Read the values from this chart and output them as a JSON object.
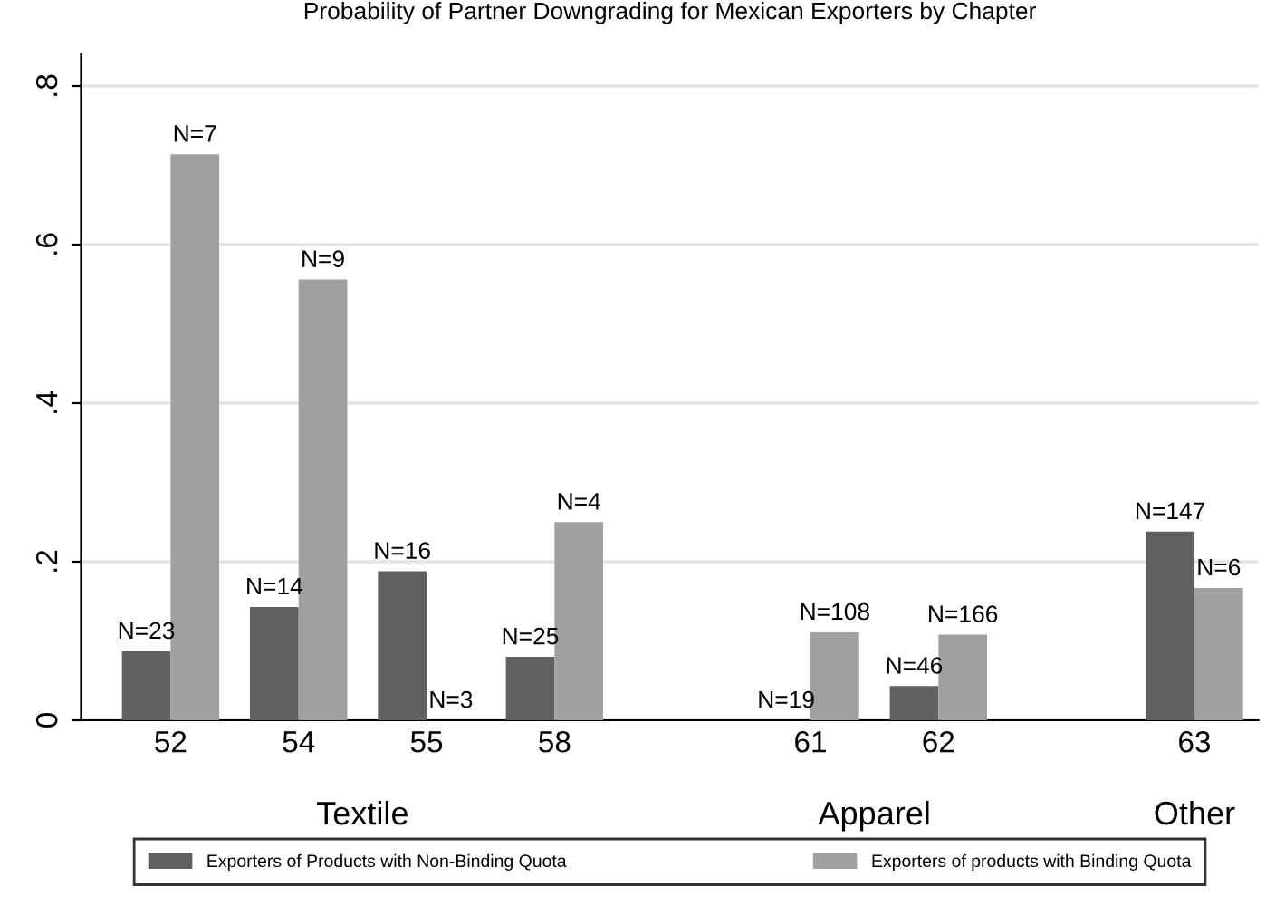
{
  "chart_data": {
    "type": "bar",
    "title": "Probability of Partner Downgrading for Mexican Exporters by Chapter",
    "categories": [
      "52",
      "54",
      "55",
      "58",
      null,
      "61",
      "62",
      null,
      "63"
    ],
    "series": [
      {
        "name": "Exporters of Products with Non-Binding Quota",
        "color": "#606060",
        "values": [
          0.087,
          0.143,
          0.188,
          0.08,
          null,
          0,
          0.043,
          null,
          0.238
        ]
      },
      {
        "name": "Exporters of products with Binding Quota",
        "color": "#a0a0a0",
        "values": [
          0.714,
          0.556,
          0,
          0.25,
          null,
          0.111,
          0.108,
          null,
          0.167
        ]
      }
    ],
    "annotations": [
      "Textile",
      "Apparel",
      "Other",
      {
        "text": "N=23",
        "x": "52",
        "y": 0.087
      },
      {
        "text": "N=7",
        "x": "52",
        "y": 0.714
      },
      {
        "text": "N=14",
        "x": "54",
        "y": 0.143
      },
      {
        "text": "N=9",
        "x": "54",
        "y": 0.556
      },
      {
        "text": "N=16",
        "x": "55",
        "y": 0.188
      },
      {
        "text": "N=3",
        "x": "55",
        "y": 0
      },
      {
        "text": "N=25",
        "x": "58",
        "y": 0.08
      },
      {
        "text": "N=4",
        "x": "58",
        "y": 0.25
      },
      {
        "text": "N=19",
        "x": "61",
        "y": 0
      },
      {
        "text": "N=108",
        "x": "61",
        "y": 0.111
      },
      {
        "text": "N=46",
        "x": "62",
        "y": 0.043
      },
      {
        "text": "N=166",
        "x": "62",
        "y": 0.108
      },
      {
        "text": "N=147",
        "x": "63",
        "y": 0.238
      },
      {
        "text": "N=6",
        "x": "63",
        "y": 0.167
      }
    ],
    "ylim": [
      0,
      0.84
    ],
    "yticks": [
      {
        "value": 0,
        "label": "0"
      },
      {
        "value": 0.2,
        "label": ".2"
      },
      {
        "value": 0.4,
        "label": ".4"
      },
      {
        "value": 0.6,
        "label": ".6"
      },
      {
        "value": 0.8,
        "label": ".8"
      }
    ],
    "grid": "y",
    "legend": "bottom"
  }
}
